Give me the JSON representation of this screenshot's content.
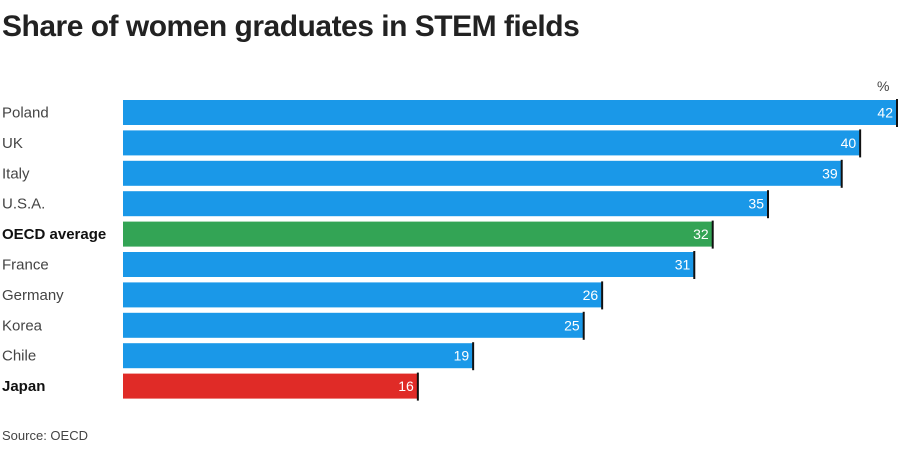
{
  "title": "Share of women graduates in STEM fields",
  "source": "Source: OECD",
  "chart_data": {
    "type": "bar",
    "orientation": "horizontal",
    "unit_label": "%",
    "categories": [
      "Poland",
      "UK",
      "Italy",
      "U.S.A.",
      "OECD average",
      "France",
      "Germany",
      "Korea",
      "Chile",
      "Japan"
    ],
    "values": [
      42,
      40,
      39,
      35,
      32,
      31,
      26,
      25,
      19,
      16
    ],
    "bold_categories": [
      "OECD average",
      "Japan"
    ],
    "xlim": [
      0,
      42
    ],
    "grid": false,
    "data_labels": true,
    "colors": {
      "default": "#1a98e8",
      "OECD average": "#33a455",
      "Japan": "#e02b27",
      "end_marker": "#111111",
      "label_text": "#ffffff"
    }
  }
}
